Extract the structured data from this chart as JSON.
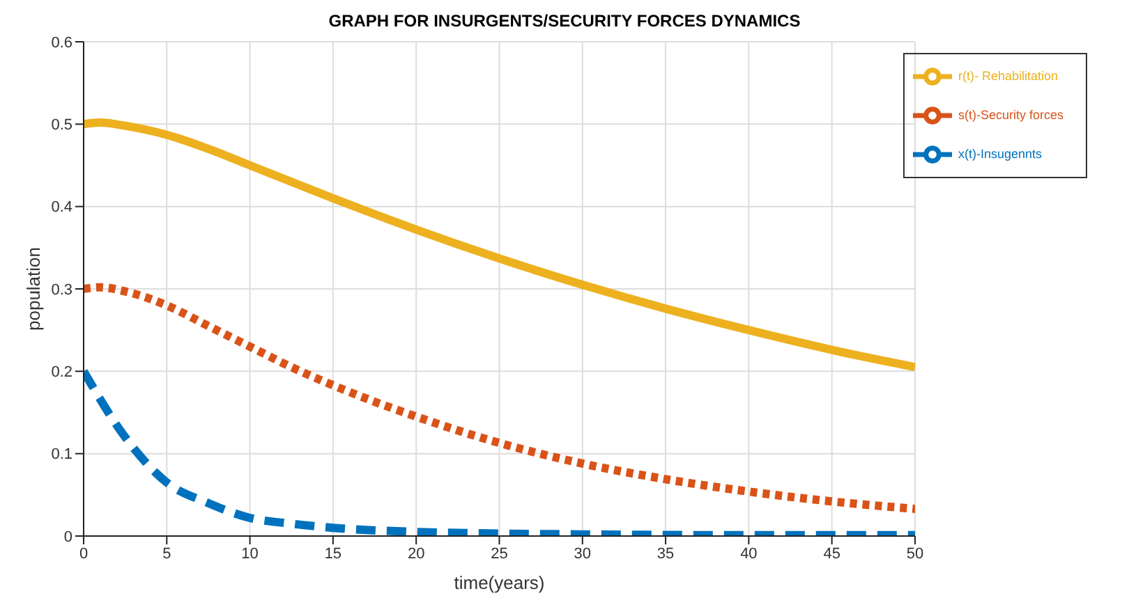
{
  "chart_data": {
    "type": "line",
    "title": "GRAPH FOR INSURGENTS/SECURITY FORCES DYNAMICS",
    "xlabel": "time(years)",
    "ylabel": "population",
    "xlim": [
      0,
      50
    ],
    "xticks": [
      0,
      5,
      10,
      15,
      20,
      25,
      30,
      35,
      40,
      45,
      50
    ],
    "ylim": [
      0,
      0.6
    ],
    "yticks": [
      0,
      0.1,
      0.2,
      0.3,
      0.4,
      0.5,
      0.6
    ],
    "grid": true,
    "legend": "top right",
    "marker": "none",
    "series": [
      {
        "name": "x(t)-Insugennts",
        "color": "#0072bd",
        "line_style": "dashed",
        "x": [
          0,
          2.5,
          5,
          7.5,
          10,
          12.5,
          15,
          20,
          25,
          30,
          40,
          50
        ],
        "values": [
          0.2,
          0.12,
          0.065,
          0.04,
          0.022,
          0.015,
          0.01,
          0.005,
          0.003,
          0.002,
          0.001,
          0.001
        ]
      },
      {
        "name": "s(t)-Security forces",
        "color": "#d95319",
        "line_style": "dotted",
        "x": [
          0,
          1,
          2.5,
          5,
          7.5,
          10,
          12.5,
          15,
          17.5,
          20,
          25,
          30,
          35,
          40,
          45,
          50
        ],
        "values": [
          0.3,
          0.302,
          0.297,
          0.28,
          0.255,
          0.23,
          0.205,
          0.183,
          0.163,
          0.145,
          0.113,
          0.088,
          0.069,
          0.054,
          0.042,
          0.033
        ]
      },
      {
        "name": "r(t)- Rehabilitation",
        "color": "#edb120",
        "line_style": "solid",
        "x": [
          0,
          1,
          2.5,
          5,
          7.5,
          10,
          15,
          20,
          25,
          30,
          35,
          40,
          45,
          50
        ],
        "values": [
          0.5,
          0.502,
          0.498,
          0.487,
          0.47,
          0.45,
          0.41,
          0.372,
          0.337,
          0.305,
          0.276,
          0.25,
          0.226,
          0.205
        ]
      }
    ]
  }
}
